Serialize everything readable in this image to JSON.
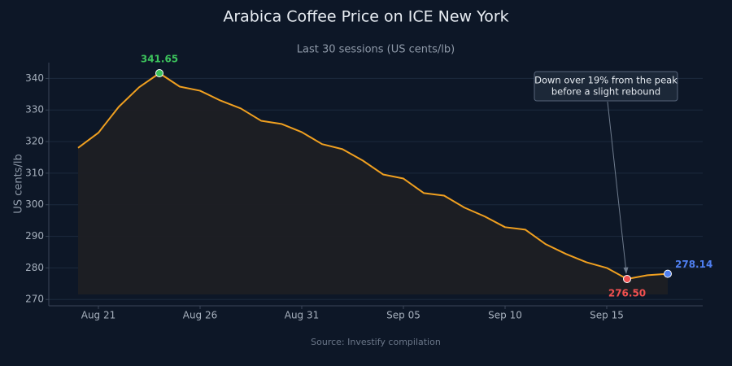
{
  "chart_data": {
    "type": "line",
    "title": "Arabica Coffee Price on ICE New York",
    "subtitle": "Last 30 sessions (US cents/lb)",
    "ylabel": "US cents/lb",
    "source": "Source: Investify compilation",
    "x": [
      "Aug 20",
      "Aug 21",
      "Aug 22",
      "Aug 23",
      "Aug 24",
      "Aug 25",
      "Aug 26",
      "Aug 27",
      "Aug 28",
      "Aug 29",
      "Aug 30",
      "Aug 31",
      "Sep 01",
      "Sep 02",
      "Sep 03",
      "Sep 04",
      "Sep 05",
      "Sep 06",
      "Sep 07",
      "Sep 08",
      "Sep 09",
      "Sep 10",
      "Sep 11",
      "Sep 12",
      "Sep 13",
      "Sep 14",
      "Sep 15",
      "Sep 16",
      "Sep 17",
      "Sep 18"
    ],
    "series": [
      {
        "name": "Arabica",
        "color": "#f0a020",
        "values": [
          318.0,
          322.8,
          331.0,
          337.2,
          341.65,
          337.4,
          336.1,
          333.0,
          330.5,
          326.6,
          325.6,
          323.0,
          319.2,
          317.6,
          314.0,
          309.6,
          308.3,
          303.7,
          302.9,
          299.1,
          296.3,
          292.9,
          292.1,
          287.5,
          284.4,
          281.8,
          280.0,
          276.5,
          277.7,
          278.14
        ]
      }
    ],
    "xticks": [
      "Aug 21",
      "Aug 26",
      "Aug 31",
      "Sep 05",
      "Sep 10",
      "Sep 15"
    ],
    "ylim": [
      268,
      345
    ],
    "yticks": [
      270,
      280,
      290,
      300,
      310,
      320,
      330,
      340
    ],
    "grid": true,
    "point_labels": [
      {
        "x": "Aug 24",
        "label": "341.65",
        "color": "#3cc35c"
      },
      {
        "x": "Sep 16",
        "label": "276.50",
        "color": "#f05050"
      },
      {
        "x": "Sep 18",
        "label": "278.14",
        "color": "#4f7ff0"
      }
    ],
    "annotation": {
      "x": "Sep 16",
      "lines": [
        "Down over 19% from the peak",
        "before a slight rebound"
      ]
    }
  }
}
